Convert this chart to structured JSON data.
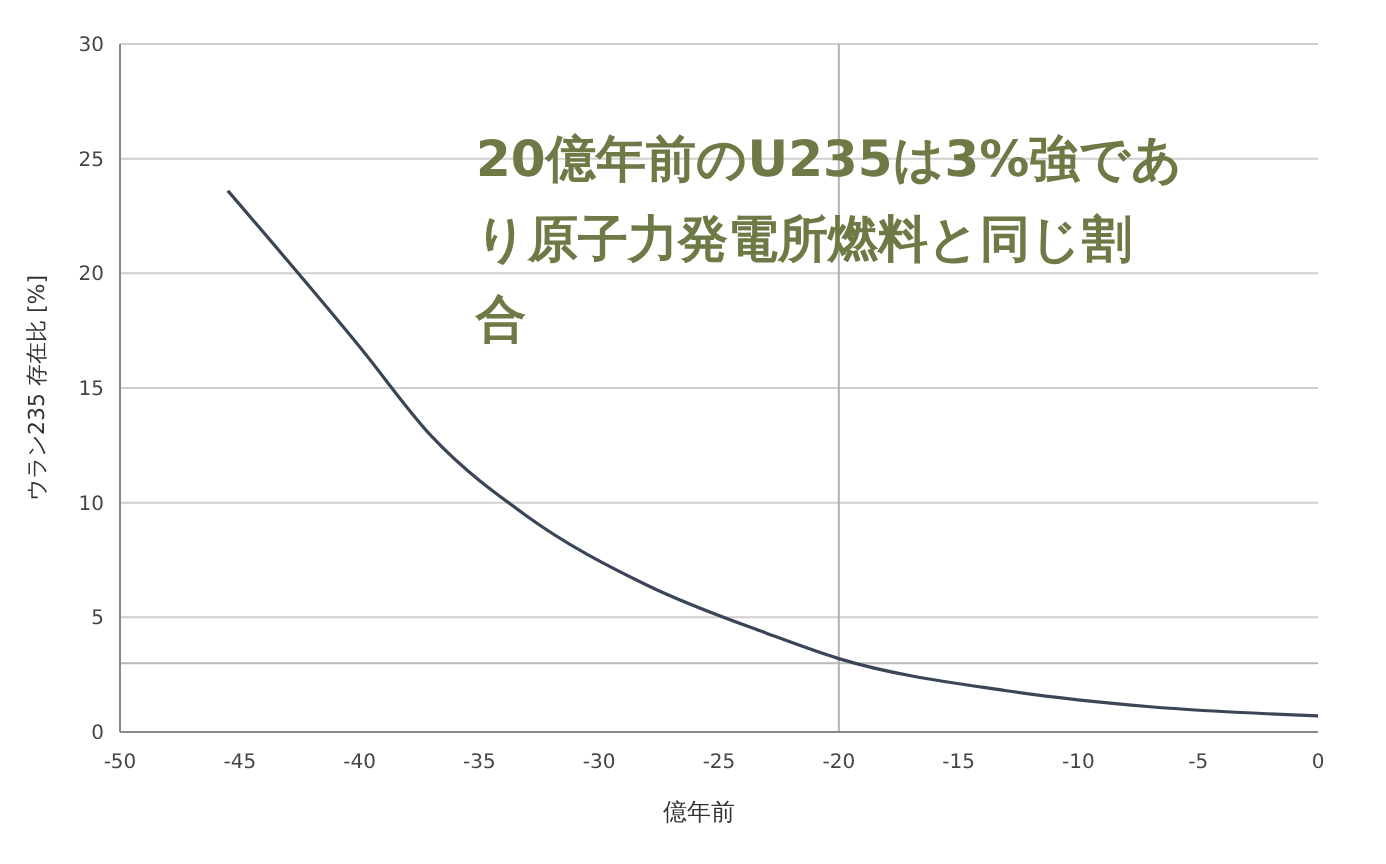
{
  "chart_data": {
    "type": "line",
    "xlabel": "億年前",
    "ylabel": "ウラン235 存在比 [%]",
    "annotations": [
      "20億年前のU235は3%強であり原子力発電所燃料と同じ割合"
    ],
    "x": [
      -45.5,
      -40,
      -37,
      -33,
      -28,
      -23,
      -20,
      -13,
      -7,
      0
    ],
    "series": [
      {
        "color": "#3a4656",
        "values": [
          23.6,
          16.8,
          12.9,
          9.4,
          6.4,
          4.3,
          3.2,
          1.8,
          1.1,
          0.7
        ]
      }
    ],
    "xlim": [
      -50,
      0
    ],
    "xticks": [
      -50,
      -45,
      -40,
      -35,
      -30,
      -25,
      -20,
      -15,
      -10,
      -5,
      0
    ],
    "ylim": [
      0,
      30
    ],
    "yticks": [
      0,
      5,
      10,
      15,
      20,
      25,
      30
    ],
    "grid": "y",
    "marker": "none",
    "line_style": "solid",
    "ref_lines": [
      {
        "axis": "y",
        "value": 3,
        "color": "#b8b8b8"
      },
      {
        "axis": "x",
        "value": -20,
        "color": "#b0b0b0"
      }
    ]
  }
}
